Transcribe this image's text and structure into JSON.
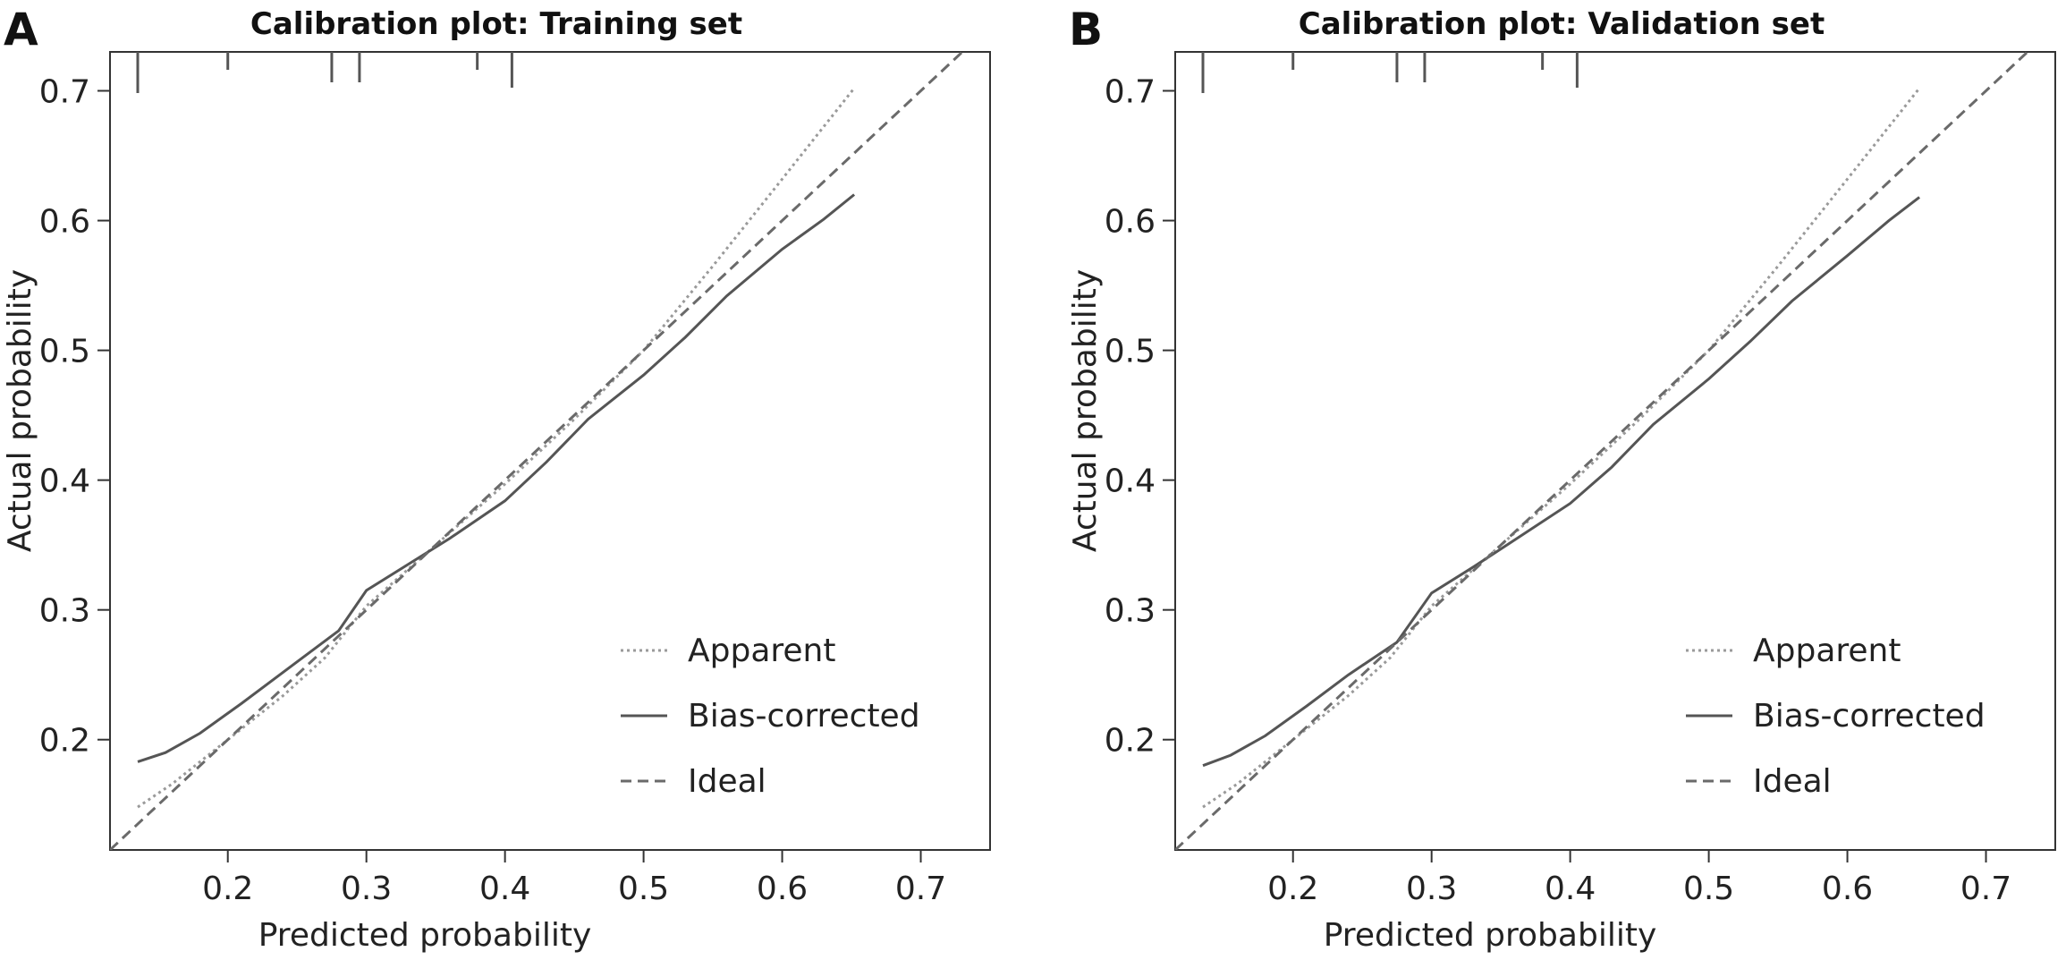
{
  "chart_data": [
    {
      "panel_label": "A",
      "type": "line",
      "title": "Calibration plot: Training set",
      "xlabel": "Predicted probability",
      "ylabel": "Actual probability",
      "xlim": [
        0.115,
        0.75
      ],
      "ylim": [
        0.115,
        0.73
      ],
      "xticks": [
        0.2,
        0.3,
        0.4,
        0.5,
        0.6,
        0.7
      ],
      "yticks": [
        0.2,
        0.3,
        0.4,
        0.5,
        0.6,
        0.7
      ],
      "grid": false,
      "legend_position": "bottom-right",
      "series": [
        {
          "name": "Apparent",
          "style": "dotted",
          "x": [
            0.135,
            0.16,
            0.2,
            0.24,
            0.27,
            0.3,
            0.35,
            0.4,
            0.45,
            0.5,
            0.55,
            0.6,
            0.652
          ],
          "y": [
            0.148,
            0.166,
            0.2,
            0.234,
            0.263,
            0.303,
            0.35,
            0.397,
            0.447,
            0.5,
            0.565,
            0.632,
            0.702
          ]
        },
        {
          "name": "Bias-corrected",
          "style": "solid",
          "x": [
            0.135,
            0.155,
            0.18,
            0.21,
            0.25,
            0.28,
            0.3,
            0.33,
            0.36,
            0.4,
            0.43,
            0.46,
            0.5,
            0.53,
            0.56,
            0.6,
            0.63,
            0.652
          ],
          "y": [
            0.183,
            0.19,
            0.205,
            0.228,
            0.26,
            0.284,
            0.315,
            0.335,
            0.355,
            0.384,
            0.414,
            0.447,
            0.481,
            0.51,
            0.542,
            0.578,
            0.601,
            0.62
          ]
        },
        {
          "name": "Ideal",
          "style": "dashed",
          "x": [
            0.115,
            0.75
          ],
          "y": [
            0.115,
            0.75
          ]
        }
      ],
      "rug": [
        0.135,
        0.2,
        0.275,
        0.295,
        0.38,
        0.405
      ]
    },
    {
      "panel_label": "B",
      "type": "line",
      "title": "Calibration plot: Validation set",
      "xlabel": "Predicted probability",
      "ylabel": "Actual probability",
      "xlim": [
        0.115,
        0.75
      ],
      "ylim": [
        0.115,
        0.73
      ],
      "xticks": [
        0.2,
        0.3,
        0.4,
        0.5,
        0.6,
        0.7
      ],
      "yticks": [
        0.2,
        0.3,
        0.4,
        0.5,
        0.6,
        0.7
      ],
      "grid": false,
      "legend_position": "bottom-right",
      "series": [
        {
          "name": "Apparent",
          "style": "dotted",
          "x": [
            0.135,
            0.16,
            0.2,
            0.24,
            0.27,
            0.3,
            0.35,
            0.4,
            0.45,
            0.5,
            0.55,
            0.6,
            0.652
          ],
          "y": [
            0.148,
            0.166,
            0.2,
            0.234,
            0.263,
            0.303,
            0.35,
            0.397,
            0.447,
            0.5,
            0.565,
            0.632,
            0.702
          ]
        },
        {
          "name": "Bias-corrected",
          "style": "solid",
          "x": [
            0.135,
            0.155,
            0.18,
            0.21,
            0.24,
            0.275,
            0.3,
            0.33,
            0.36,
            0.4,
            0.43,
            0.46,
            0.5,
            0.53,
            0.56,
            0.6,
            0.63,
            0.652
          ],
          "y": [
            0.18,
            0.188,
            0.203,
            0.226,
            0.25,
            0.275,
            0.313,
            0.333,
            0.354,
            0.382,
            0.41,
            0.443,
            0.478,
            0.507,
            0.538,
            0.573,
            0.6,
            0.618
          ]
        },
        {
          "name": "Ideal",
          "style": "dashed",
          "x": [
            0.115,
            0.75
          ],
          "y": [
            0.115,
            0.75
          ]
        }
      ],
      "rug": [
        0.135,
        0.2,
        0.275,
        0.295,
        0.38,
        0.405
      ]
    }
  ]
}
